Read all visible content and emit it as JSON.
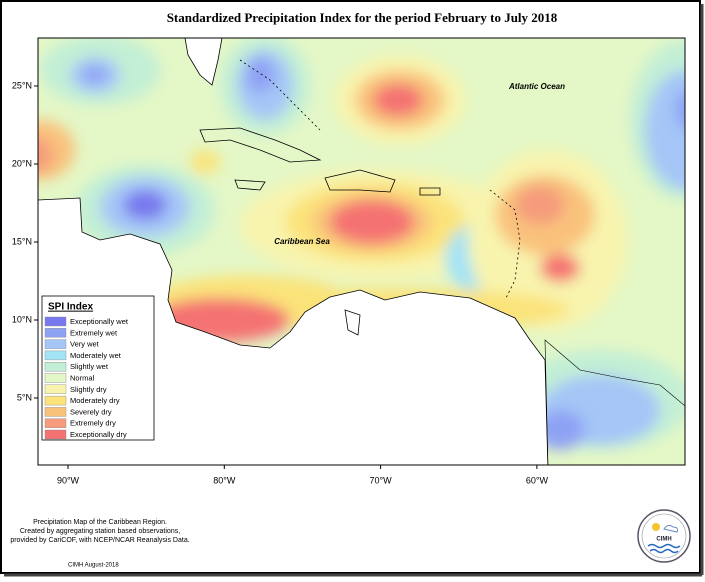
{
  "header": {
    "title": "Standardized Precipitation Index for the period February to July 2018"
  },
  "map": {
    "latitude_labels": [
      "25°N",
      "20°N",
      "15°N",
      "10°N",
      "5°N"
    ],
    "longitude_labels": [
      "90°W",
      "80°W",
      "70°W",
      "60°W"
    ],
    "place_labels": [
      "Atlantic Ocean",
      "Caribbean Sea"
    ]
  },
  "legend": {
    "title": "SPI Index",
    "items": [
      {
        "label": "Exceptionally wet",
        "color": "#7878ee"
      },
      {
        "label": "Extremely wet",
        "color": "#8ea2f4"
      },
      {
        "label": "Very wet",
        "color": "#a5c6f7"
      },
      {
        "label": "Moderately wet",
        "color": "#a2e3f6"
      },
      {
        "label": "Slightly wet",
        "color": "#c2efd6"
      },
      {
        "label": "Normal",
        "color": "#e4f7c6"
      },
      {
        "label": "Slightly dry",
        "color": "#f8f4ae"
      },
      {
        "label": "Moderately dry",
        "color": "#fbe37a"
      },
      {
        "label": "Severely dry",
        "color": "#f9c27b"
      },
      {
        "label": "Extremely dry",
        "color": "#f69c7c"
      },
      {
        "label": "Exceptionally dry",
        "color": "#f47272"
      }
    ]
  },
  "footer": {
    "lines": [
      "Precipitation Map of the Caribbean Region.",
      "Created by aggregating station based observations,",
      "provided by CariCOF, with NCEP/NCAR Reanalysis Data."
    ],
    "credit": "CIMH August-2018"
  },
  "logo": {
    "text": "CIMH"
  }
}
